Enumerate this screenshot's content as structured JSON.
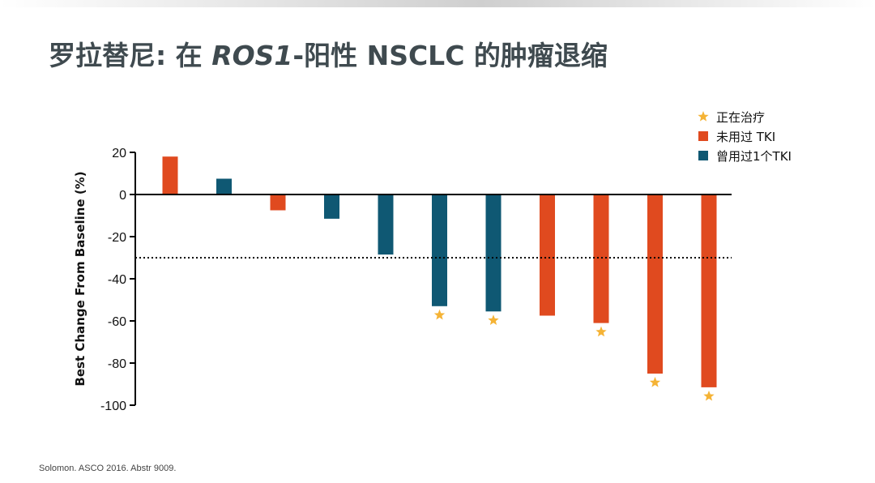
{
  "title": {
    "part1": "罗拉替尼: 在 ",
    "italic": "ROS1",
    "part2": "-阳性 NSCLC 的肿瘤退缩"
  },
  "footnote": "Solomon. ASCO 2016. Abstr 9009.",
  "colors": {
    "tki_naive": "#e04a1f",
    "prior_one_tki": "#0f5873",
    "ongoing_star": "#f5b335",
    "axis": "#000000"
  },
  "chart_data": {
    "type": "bar",
    "ylabel": "Best Change From Baseline (%)",
    "xlabel": "",
    "ylim": [
      -100,
      20
    ],
    "yticks": [
      20,
      0,
      -20,
      -40,
      -60,
      -80,
      -100
    ],
    "reference_line": {
      "y": -30,
      "style": "dotted"
    },
    "legend": {
      "placement": "top-right",
      "items": [
        {
          "key": "ongoing",
          "label": "正在治疗",
          "marker": "star"
        },
        {
          "key": "tki_naive",
          "label": "未用过 TKI",
          "marker": "square"
        },
        {
          "key": "prior_one_tki",
          "label": "曾用过1个TKI",
          "marker": "square"
        }
      ]
    },
    "bars": [
      {
        "value": 18,
        "group": "tki_naive",
        "ongoing": false
      },
      {
        "value": 7.5,
        "group": "prior_one_tki",
        "ongoing": false
      },
      {
        "value": -7.5,
        "group": "tki_naive",
        "ongoing": false
      },
      {
        "value": -11.5,
        "group": "prior_one_tki",
        "ongoing": false
      },
      {
        "value": -28.5,
        "group": "prior_one_tki",
        "ongoing": false
      },
      {
        "value": -53,
        "group": "prior_one_tki",
        "ongoing": true
      },
      {
        "value": -55.5,
        "group": "prior_one_tki",
        "ongoing": true
      },
      {
        "value": -57.5,
        "group": "tki_naive",
        "ongoing": false
      },
      {
        "value": -61,
        "group": "tki_naive",
        "ongoing": true
      },
      {
        "value": -85,
        "group": "tki_naive",
        "ongoing": true
      },
      {
        "value": -91.5,
        "group": "tki_naive",
        "ongoing": true
      }
    ]
  }
}
